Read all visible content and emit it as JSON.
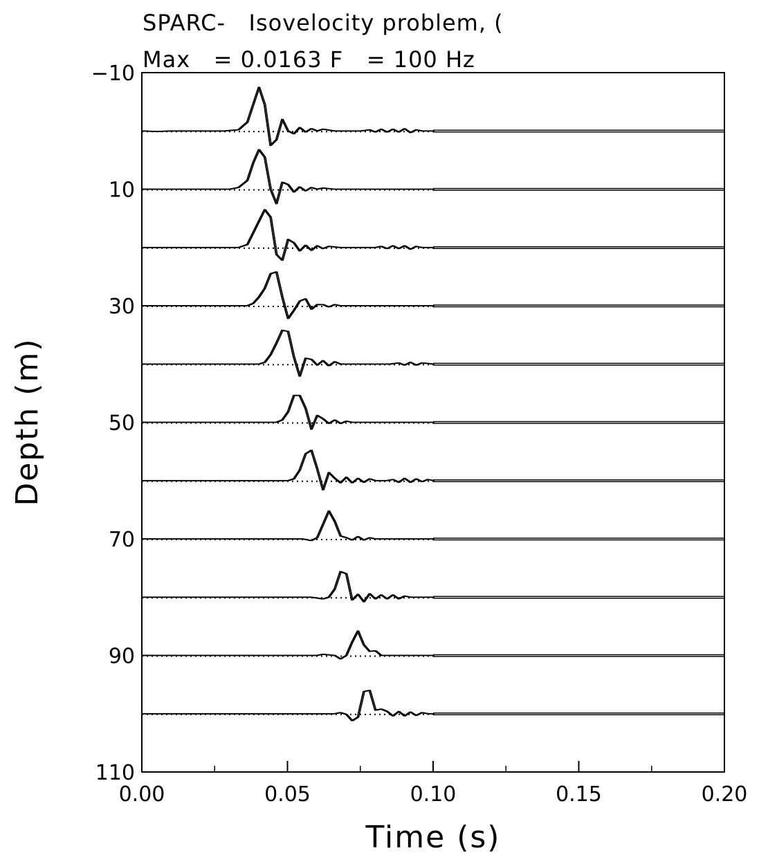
{
  "chart_data": {
    "type": "line",
    "title_line1": "SPARC-   Isovelocity problem, (",
    "title_line2": "Max   = 0.0163 F   = 100 Hz",
    "xlabel": "Time (s)",
    "ylabel": "Depth (m)",
    "xlim": [
      0.0,
      0.2
    ],
    "ylim": [
      -10,
      110
    ],
    "y_inverted": true,
    "grid": false,
    "x_ticks": [
      {
        "value": 0.0,
        "label": "0.00"
      },
      {
        "value": 0.05,
        "label": "0.05"
      },
      {
        "value": 0.1,
        "label": "0.10"
      },
      {
        "value": 0.15,
        "label": "0.15"
      },
      {
        "value": 0.2,
        "label": "0.20"
      }
    ],
    "y_ticks": [
      {
        "value": -10,
        "label": "−10"
      },
      {
        "value": 10,
        "label": "10"
      },
      {
        "value": 30,
        "label": "30"
      },
      {
        "value": 50,
        "label": "50"
      },
      {
        "value": 70,
        "label": "70"
      },
      {
        "value": 90,
        "label": "90"
      },
      {
        "value": 110,
        "label": "110"
      }
    ],
    "trace_depths": [
      0,
      10,
      20,
      30,
      40,
      50,
      60,
      70,
      80,
      90,
      100
    ],
    "trace_data_end_time": 0.1,
    "traces": [
      {
        "depth": 0,
        "points": [
          [
            0,
            0
          ],
          [
            0.005,
            -0.1
          ],
          [
            0.01,
            0
          ],
          [
            0.02,
            0
          ],
          [
            0.028,
            0
          ],
          [
            0.033,
            0.2
          ],
          [
            0.036,
            1.5
          ],
          [
            0.038,
            4.5
          ],
          [
            0.04,
            7.5
          ],
          [
            0.042,
            4.5
          ],
          [
            0.044,
            -2.5
          ],
          [
            0.046,
            -1.5
          ],
          [
            0.048,
            2
          ],
          [
            0.05,
            0
          ],
          [
            0.052,
            -0.5
          ],
          [
            0.054,
            0.6
          ],
          [
            0.056,
            -0.2
          ],
          [
            0.058,
            0.4
          ],
          [
            0.06,
            0
          ],
          [
            0.062,
            0.3
          ],
          [
            0.066,
            0
          ],
          [
            0.075,
            0
          ],
          [
            0.078,
            0.2
          ],
          [
            0.08,
            -0.2
          ],
          [
            0.082,
            0.3
          ],
          [
            0.084,
            -0.2
          ],
          [
            0.086,
            0.3
          ],
          [
            0.088,
            -0.2
          ],
          [
            0.09,
            0.4
          ],
          [
            0.092,
            -0.3
          ],
          [
            0.094,
            0.2
          ],
          [
            0.096,
            0
          ],
          [
            0.1,
            0
          ]
        ]
      },
      {
        "depth": 10,
        "points": [
          [
            0,
            0
          ],
          [
            0.02,
            0
          ],
          [
            0.03,
            0
          ],
          [
            0.033,
            0.3
          ],
          [
            0.036,
            1.5
          ],
          [
            0.038,
            4.5
          ],
          [
            0.04,
            6.8
          ],
          [
            0.042,
            5.5
          ],
          [
            0.044,
            0
          ],
          [
            0.046,
            -2.5
          ],
          [
            0.048,
            1.2
          ],
          [
            0.05,
            0.8
          ],
          [
            0.052,
            -0.5
          ],
          [
            0.054,
            0.4
          ],
          [
            0.056,
            -0.3
          ],
          [
            0.058,
            0.3
          ],
          [
            0.06,
            0
          ],
          [
            0.062,
            0.2
          ],
          [
            0.066,
            0
          ],
          [
            0.1,
            0
          ]
        ]
      },
      {
        "depth": 20,
        "points": [
          [
            0,
            0
          ],
          [
            0.02,
            0
          ],
          [
            0.033,
            0
          ],
          [
            0.036,
            0.5
          ],
          [
            0.038,
            2.5
          ],
          [
            0.04,
            4.5
          ],
          [
            0.042,
            6.5
          ],
          [
            0.044,
            5.2
          ],
          [
            0.046,
            -1.2
          ],
          [
            0.048,
            -2.2
          ],
          [
            0.05,
            1.4
          ],
          [
            0.052,
            0.8
          ],
          [
            0.054,
            -0.6
          ],
          [
            0.056,
            0.4
          ],
          [
            0.058,
            -0.5
          ],
          [
            0.06,
            0.3
          ],
          [
            0.062,
            -0.2
          ],
          [
            0.064,
            0.2
          ],
          [
            0.068,
            0
          ],
          [
            0.08,
            0
          ],
          [
            0.082,
            0.2
          ],
          [
            0.084,
            -0.2
          ],
          [
            0.086,
            0.3
          ],
          [
            0.088,
            -0.2
          ],
          [
            0.09,
            0.3
          ],
          [
            0.092,
            -0.3
          ],
          [
            0.094,
            0.2
          ],
          [
            0.096,
            0
          ],
          [
            0.1,
            0
          ]
        ]
      },
      {
        "depth": 30,
        "points": [
          [
            0,
            0
          ],
          [
            0.02,
            0
          ],
          [
            0.036,
            0
          ],
          [
            0.038,
            0.4
          ],
          [
            0.04,
            1.5
          ],
          [
            0.042,
            3
          ],
          [
            0.044,
            5.5
          ],
          [
            0.046,
            5.8
          ],
          [
            0.048,
            1.5
          ],
          [
            0.05,
            -2.2
          ],
          [
            0.052,
            -0.8
          ],
          [
            0.054,
            0.8
          ],
          [
            0.056,
            1.2
          ],
          [
            0.058,
            -0.6
          ],
          [
            0.06,
            0.2
          ],
          [
            0.062,
            0.2
          ],
          [
            0.064,
            -0.2
          ],
          [
            0.066,
            0.2
          ],
          [
            0.068,
            0
          ],
          [
            0.1,
            0
          ]
        ]
      },
      {
        "depth": 40,
        "points": [
          [
            0,
            0
          ],
          [
            0.02,
            0
          ],
          [
            0.04,
            0
          ],
          [
            0.042,
            0.3
          ],
          [
            0.044,
            1.6
          ],
          [
            0.046,
            3.6
          ],
          [
            0.048,
            5.8
          ],
          [
            0.05,
            5.6
          ],
          [
            0.052,
            1.2
          ],
          [
            0.054,
            -2.1
          ],
          [
            0.056,
            1
          ],
          [
            0.058,
            0.8
          ],
          [
            0.06,
            -0.2
          ],
          [
            0.062,
            0.6
          ],
          [
            0.064,
            -0.3
          ],
          [
            0.066,
            0.4
          ],
          [
            0.068,
            0
          ],
          [
            0.085,
            0
          ],
          [
            0.088,
            0.2
          ],
          [
            0.09,
            -0.2
          ],
          [
            0.092,
            0.3
          ],
          [
            0.094,
            -0.2
          ],
          [
            0.096,
            0.2
          ],
          [
            0.1,
            0
          ]
        ]
      },
      {
        "depth": 50,
        "points": [
          [
            0,
            0
          ],
          [
            0.02,
            0
          ],
          [
            0.046,
            0
          ],
          [
            0.048,
            0.4
          ],
          [
            0.05,
            1.8
          ],
          [
            0.052,
            4.6
          ],
          [
            0.054,
            4.6
          ],
          [
            0.056,
            2.4
          ],
          [
            0.058,
            -1.2
          ],
          [
            0.06,
            1.2
          ],
          [
            0.062,
            0.6
          ],
          [
            0.064,
            -0.2
          ],
          [
            0.066,
            0.4
          ],
          [
            0.068,
            -0.2
          ],
          [
            0.07,
            0.2
          ],
          [
            0.072,
            0
          ],
          [
            0.1,
            0
          ]
        ]
      },
      {
        "depth": 60,
        "points": [
          [
            0,
            0
          ],
          [
            0.02,
            0
          ],
          [
            0.05,
            0
          ],
          [
            0.052,
            0.3
          ],
          [
            0.054,
            1.8
          ],
          [
            0.056,
            4.6
          ],
          [
            0.058,
            5.2
          ],
          [
            0.06,
            2
          ],
          [
            0.062,
            -1.6
          ],
          [
            0.064,
            1.4
          ],
          [
            0.066,
            0.4
          ],
          [
            0.068,
            -0.4
          ],
          [
            0.07,
            0.6
          ],
          [
            0.072,
            -0.4
          ],
          [
            0.074,
            0.4
          ],
          [
            0.076,
            -0.3
          ],
          [
            0.078,
            0.3
          ],
          [
            0.08,
            0
          ],
          [
            0.084,
            0
          ],
          [
            0.086,
            0.2
          ],
          [
            0.088,
            -0.3
          ],
          [
            0.09,
            0.4
          ],
          [
            0.092,
            -0.3
          ],
          [
            0.094,
            0.3
          ],
          [
            0.096,
            -0.2
          ],
          [
            0.098,
            0.2
          ],
          [
            0.1,
            0
          ]
        ]
      },
      {
        "depth": 70,
        "points": [
          [
            0,
            0
          ],
          [
            0.02,
            0
          ],
          [
            0.055,
            0
          ],
          [
            0.058,
            -0.3
          ],
          [
            0.06,
            0.2
          ],
          [
            0.062,
            2.5
          ],
          [
            0.064,
            4.8
          ],
          [
            0.066,
            3
          ],
          [
            0.068,
            0.5
          ],
          [
            0.07,
            0.2
          ],
          [
            0.072,
            -0.2
          ],
          [
            0.074,
            0.4
          ],
          [
            0.076,
            -0.2
          ],
          [
            0.078,
            0.2
          ],
          [
            0.08,
            0
          ],
          [
            0.1,
            0
          ]
        ]
      },
      {
        "depth": 80,
        "points": [
          [
            0,
            0
          ],
          [
            0.02,
            0
          ],
          [
            0.058,
            0
          ],
          [
            0.062,
            -0.3
          ],
          [
            0.064,
            0
          ],
          [
            0.066,
            1.4
          ],
          [
            0.068,
            4.4
          ],
          [
            0.07,
            4
          ],
          [
            0.072,
            -0.5
          ],
          [
            0.074,
            0.5
          ],
          [
            0.076,
            -0.8
          ],
          [
            0.078,
            0.6
          ],
          [
            0.08,
            -0.3
          ],
          [
            0.082,
            0.4
          ],
          [
            0.084,
            -0.3
          ],
          [
            0.086,
            0.4
          ],
          [
            0.088,
            -0.3
          ],
          [
            0.09,
            0.2
          ],
          [
            0.092,
            0
          ],
          [
            0.1,
            0
          ]
        ]
      },
      {
        "depth": 90,
        "points": [
          [
            0,
            0
          ],
          [
            0.02,
            0
          ],
          [
            0.06,
            0
          ],
          [
            0.062,
            0.2
          ],
          [
            0.066,
            0
          ],
          [
            0.068,
            -0.6
          ],
          [
            0.07,
            0
          ],
          [
            0.072,
            2.3
          ],
          [
            0.074,
            4.2
          ],
          [
            0.076,
            1.8
          ],
          [
            0.078,
            0.7
          ],
          [
            0.08,
            0.8
          ],
          [
            0.082,
            0
          ],
          [
            0.086,
            0
          ],
          [
            0.1,
            0
          ]
        ]
      },
      {
        "depth": 100,
        "points": [
          [
            0,
            0
          ],
          [
            0.02,
            0
          ],
          [
            0.066,
            0
          ],
          [
            0.068,
            0.2
          ],
          [
            0.07,
            -0.1
          ],
          [
            0.072,
            -1.2
          ],
          [
            0.074,
            -0.6
          ],
          [
            0.076,
            3.8
          ],
          [
            0.078,
            4
          ],
          [
            0.08,
            0.6
          ],
          [
            0.082,
            0.8
          ],
          [
            0.084,
            0.4
          ],
          [
            0.086,
            -0.4
          ],
          [
            0.088,
            0.4
          ],
          [
            0.09,
            -0.4
          ],
          [
            0.092,
            0.3
          ],
          [
            0.094,
            -0.3
          ],
          [
            0.096,
            0.2
          ],
          [
            0.098,
            0
          ],
          [
            0.1,
            0
          ]
        ]
      }
    ]
  }
}
